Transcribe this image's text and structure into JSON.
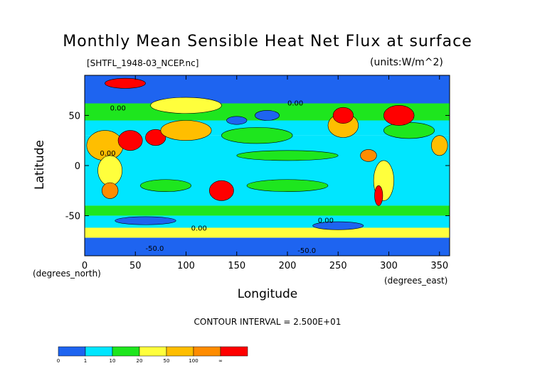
{
  "page": {
    "title": "Monthly Mean Sensible Heat Net Flux at surface",
    "file_label": "[SHTFL_1948-03_NCEP.nc]",
    "units_label": "(units:W/m^2)",
    "contour_interval": "CONTOUR INTERVAL = 2.500E+01"
  },
  "chart_data": {
    "type": "heatmap",
    "title": "Monthly Mean Sensible Heat Net Flux at surface",
    "xlabel": "Longitude",
    "ylabel": "Latitude",
    "x_unit_label": "(degrees_east)",
    "y_unit_label": "(degrees_north)",
    "xlim": [
      0,
      360
    ],
    "ylim": [
      -90,
      90
    ],
    "x_ticks": [
      0,
      50,
      100,
      150,
      200,
      250,
      300,
      350
    ],
    "y_ticks": [
      50,
      0,
      -50
    ],
    "contour_labels": [
      "0.00",
      "0.00",
      "0.00",
      "0.00",
      "-50.0",
      "-50.0",
      "0.00"
    ],
    "colorbar": {
      "labels": [
        "0",
        "1",
        "10",
        "20",
        "50",
        "100",
        "∞"
      ],
      "colors": [
        "#1e64f0",
        "#00e6ff",
        "#1ee61e",
        "#ffff3c",
        "#ffbe00",
        "#ff8c00",
        "#ff0000"
      ]
    },
    "regions": {
      "ocean_low": "#00e6ff",
      "ocean_mid": "#1ee61e",
      "polar": "#1e64f0"
    }
  }
}
